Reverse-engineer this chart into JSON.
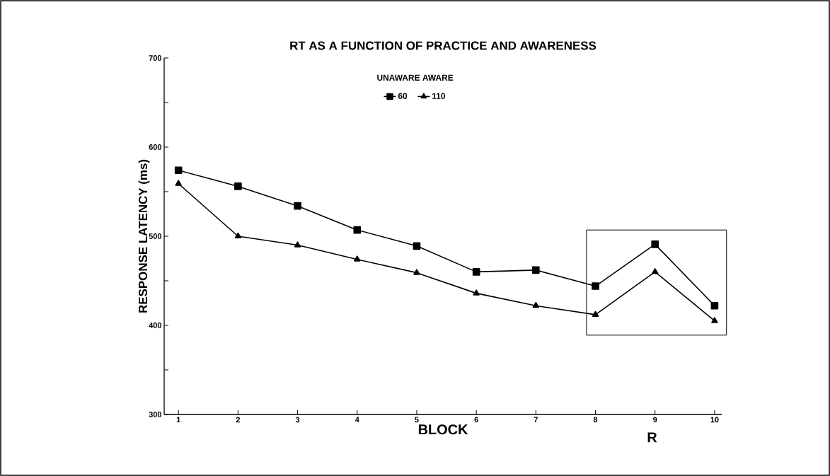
{
  "chart_data": {
    "type": "line",
    "title": "RT AS A FUNCTION OF PRACTICE AND AWARENESS",
    "xlabel": "BLOCK",
    "ylabel": "RESPONSE LATENCY (ms)",
    "legend_title": "UNAWARE AWARE",
    "legend": "top",
    "x": [
      1,
      2,
      3,
      4,
      5,
      6,
      7,
      8,
      9,
      10
    ],
    "series": [
      {
        "name": "60",
        "color": "#000000",
        "marker": "square",
        "values": [
          574,
          556,
          534,
          507,
          489,
          460,
          462,
          444,
          491,
          422
        ]
      },
      {
        "name": "110",
        "color": "#000000",
        "marker": "triangle",
        "values": [
          559,
          500,
          490,
          474,
          459,
          436,
          422,
          412,
          460,
          405
        ]
      }
    ],
    "xlim": [
      0.76,
      10.12
    ],
    "xticks": [
      1,
      2,
      3,
      4,
      5,
      6,
      7,
      8,
      9,
      10
    ],
    "ylim": [
      300,
      700
    ],
    "yticks": [
      300,
      {
        "value": 350,
        "label": null
      },
      400,
      {
        "value": 450,
        "label": null
      },
      500,
      {
        "value": 550,
        "label": null
      },
      600,
      {
        "value": 650,
        "label": null
      },
      700
    ],
    "bands": [
      {
        "axis": "x",
        "from": 7.85,
        "to": 10.2,
        "color": "#ffffff"
      }
    ],
    "annotations": [
      "R"
    ],
    "grid": false,
    "line_style": "solid"
  }
}
